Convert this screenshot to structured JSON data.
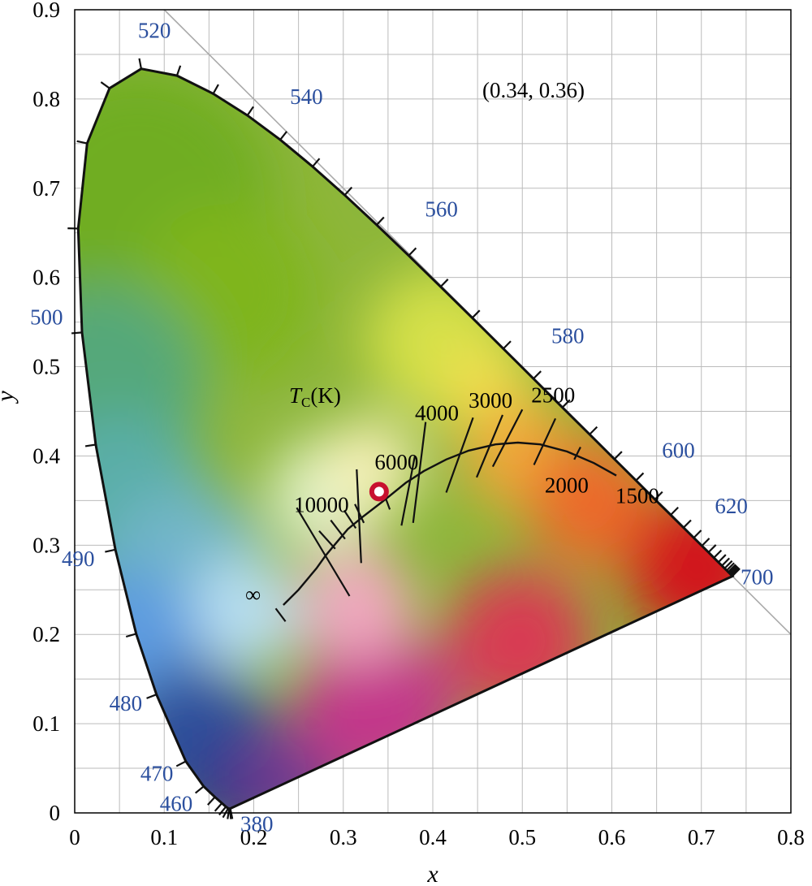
{
  "chart_data": {
    "type": "scatter",
    "title": "",
    "xlabel": "x",
    "ylabel": "y",
    "xlim": [
      0,
      0.8
    ],
    "ylim": [
      0,
      0.9
    ],
    "x_ticks": [
      "0",
      "0.1",
      "0.2",
      "0.3",
      "0.4",
      "0.5",
      "0.6",
      "0.7",
      "0.8"
    ],
    "y_ticks": [
      "0",
      "0.1",
      "0.2",
      "0.3",
      "0.4",
      "0.5",
      "0.6",
      "0.7",
      "0.8",
      "0.9"
    ],
    "grid": true,
    "minor_grid_step": 0.05,
    "spectral_locus": [
      [
        0.1741,
        0.005
      ],
      [
        0.1738,
        0.0049
      ],
      [
        0.1736,
        0.0049
      ],
      [
        0.1733,
        0.0048
      ],
      [
        0.1726,
        0.0048
      ],
      [
        0.1714,
        0.0051
      ],
      [
        0.1689,
        0.0069
      ],
      [
        0.1644,
        0.0109
      ],
      [
        0.1566,
        0.0177
      ],
      [
        0.144,
        0.0297
      ],
      [
        0.1241,
        0.0578
      ],
      [
        0.0913,
        0.1327
      ],
      [
        0.0687,
        0.2007
      ],
      [
        0.0454,
        0.295
      ],
      [
        0.0235,
        0.4127
      ],
      [
        0.0082,
        0.5384
      ],
      [
        0.0039,
        0.6548
      ],
      [
        0.0139,
        0.7502
      ],
      [
        0.0389,
        0.812
      ],
      [
        0.0743,
        0.8338
      ],
      [
        0.1142,
        0.8262
      ],
      [
        0.1547,
        0.8059
      ],
      [
        0.1929,
        0.7816
      ],
      [
        0.2296,
        0.7543
      ],
      [
        0.2658,
        0.7243
      ],
      [
        0.3016,
        0.6923
      ],
      [
        0.3373,
        0.6589
      ],
      [
        0.3731,
        0.6245
      ],
      [
        0.4087,
        0.5896
      ],
      [
        0.4441,
        0.5547
      ],
      [
        0.4788,
        0.5202
      ],
      [
        0.5125,
        0.4866
      ],
      [
        0.5448,
        0.4544
      ],
      [
        0.5752,
        0.4242
      ],
      [
        0.6029,
        0.3965
      ],
      [
        0.627,
        0.3725
      ],
      [
        0.6482,
        0.3514
      ],
      [
        0.6658,
        0.334
      ],
      [
        0.6801,
        0.3197
      ],
      [
        0.6915,
        0.3083
      ],
      [
        0.7006,
        0.2993
      ],
      [
        0.7079,
        0.292
      ],
      [
        0.714,
        0.2859
      ],
      [
        0.719,
        0.2809
      ],
      [
        0.723,
        0.277
      ],
      [
        0.726,
        0.274
      ],
      [
        0.7283,
        0.2717
      ],
      [
        0.73,
        0.27
      ],
      [
        0.7311,
        0.2689
      ],
      [
        0.732,
        0.268
      ],
      [
        0.7327,
        0.2673
      ],
      [
        0.7334,
        0.2666
      ],
      [
        0.734,
        0.266
      ],
      [
        0.7344,
        0.2656
      ],
      [
        0.7346,
        0.2654
      ],
      [
        0.7347,
        0.2653
      ]
    ],
    "spectral_labels": [
      {
        "text": "520",
        "x": 0.0743,
        "y": 0.8338
      },
      {
        "text": "540",
        "x": 0.2296,
        "y": 0.7543
      },
      {
        "text": "560",
        "x": 0.3731,
        "y": 0.6245
      },
      {
        "text": "580",
        "x": 0.5125,
        "y": 0.4866
      },
      {
        "text": "600",
        "x": 0.627,
        "y": 0.3725
      },
      {
        "text": "620",
        "x": 0.6915,
        "y": 0.3083
      },
      {
        "text": "700",
        "x": 0.7347,
        "y": 0.2653
      },
      {
        "text": "500",
        "x": 0.0082,
        "y": 0.5384
      },
      {
        "text": "490",
        "x": 0.0454,
        "y": 0.295
      },
      {
        "text": "480",
        "x": 0.0913,
        "y": 0.1327
      },
      {
        "text": "470",
        "x": 0.1241,
        "y": 0.0578
      },
      {
        "text": "460",
        "x": 0.144,
        "y": 0.0297
      },
      {
        "text": "380",
        "x": 0.1741,
        "y": 0.005
      }
    ],
    "planckian_locus": [
      [
        0.233,
        0.233
      ],
      [
        0.25,
        0.25
      ],
      [
        0.27,
        0.274
      ],
      [
        0.28,
        0.288
      ],
      [
        0.29,
        0.3
      ],
      [
        0.305,
        0.318
      ],
      [
        0.322,
        0.332
      ],
      [
        0.344,
        0.349
      ],
      [
        0.37,
        0.37
      ],
      [
        0.39,
        0.383
      ],
      [
        0.415,
        0.396
      ],
      [
        0.44,
        0.406
      ],
      [
        0.47,
        0.413
      ],
      [
        0.495,
        0.415
      ],
      [
        0.52,
        0.413
      ],
      [
        0.55,
        0.405
      ],
      [
        0.58,
        0.392
      ],
      [
        0.605,
        0.378
      ]
    ],
    "cct_isotherms": [
      [
        [
          0.248,
          0.342
        ],
        [
          0.307,
          0.243
        ]
      ],
      [
        [
          0.273,
          0.316
        ],
        [
          0.291,
          0.296
        ]
      ],
      [
        [
          0.286,
          0.328
        ],
        [
          0.302,
          0.307
        ]
      ],
      [
        [
          0.301,
          0.339
        ],
        [
          0.314,
          0.319
        ]
      ],
      [
        [
          0.313,
          0.346
        ],
        [
          0.323,
          0.325
        ]
      ],
      [
        [
          0.315,
          0.385
        ],
        [
          0.32,
          0.28
        ]
      ],
      [
        [
          0.345,
          0.359
        ],
        [
          0.352,
          0.34
        ]
      ],
      [
        [
          0.38,
          0.4
        ],
        [
          0.365,
          0.322
        ]
      ],
      [
        [
          0.392,
          0.438
        ],
        [
          0.378,
          0.325
        ]
      ],
      [
        [
          0.445,
          0.443
        ],
        [
          0.415,
          0.359
        ]
      ],
      [
        [
          0.478,
          0.446
        ],
        [
          0.449,
          0.376
        ]
      ],
      [
        [
          0.5,
          0.452
        ],
        [
          0.467,
          0.388
        ]
      ],
      [
        [
          0.537,
          0.442
        ],
        [
          0.513,
          0.39
        ]
      ],
      [
        [
          0.565,
          0.41
        ],
        [
          0.558,
          0.396
        ]
      ]
    ],
    "cct_labels": [
      {
        "text": "10000",
        "x": 0.245,
        "y": 0.337
      },
      {
        "text": "6000",
        "x": 0.335,
        "y": 0.385
      },
      {
        "text": "4000",
        "x": 0.38,
        "y": 0.44
      },
      {
        "text": "3000",
        "x": 0.44,
        "y": 0.454
      },
      {
        "text": "2500",
        "x": 0.51,
        "y": 0.46
      },
      {
        "text": "2000",
        "x": 0.525,
        "y": 0.359
      },
      {
        "text": "1500",
        "x": 0.604,
        "y": 0.347
      }
    ],
    "tc_label": {
      "symbol": "T",
      "subscript": "C",
      "unit": "(K)"
    },
    "infinity_label": "∞",
    "infinity_cap": [
      [
        0.23,
        0.22
      ],
      [
        0.233,
        0.233
      ]
    ],
    "point": {
      "x": 0.34,
      "y": 0.36,
      "label": "(0.34, 0.36)"
    },
    "colors": {
      "locus": "#111111",
      "wavelength_label": "#2b4f9e",
      "marker": "#c8102e",
      "grid": "#bbbbbb"
    }
  }
}
